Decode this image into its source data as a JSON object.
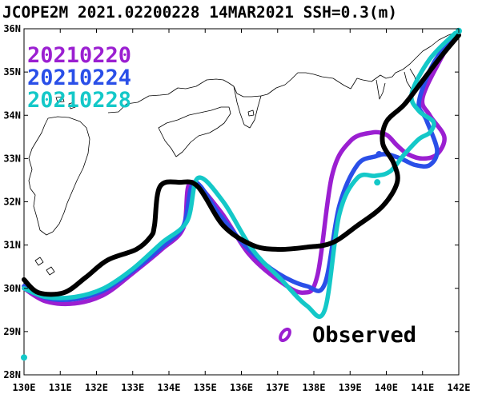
{
  "title": "JCOPE2M 2021.02200228 14MAR2021 SSH=0.3(m)",
  "axes": {
    "x_ticks": [
      "130E",
      "131E",
      "132E",
      "133E",
      "134E",
      "135E",
      "136E",
      "137E",
      "138E",
      "139E",
      "140E",
      "141E",
      "142E"
    ],
    "y_ticks": [
      "36N",
      "35N",
      "34N",
      "33N",
      "32N",
      "31N",
      "30N",
      "29N",
      "28N"
    ]
  },
  "legend": {
    "entries": [
      {
        "label": "20210220",
        "color": "#9b1fd1"
      },
      {
        "label": "20210224",
        "color": "#2a4fe8"
      },
      {
        "label": "20210228",
        "color": "#14c8c8"
      }
    ],
    "observed_label": "Observed",
    "observed_color": "#000000",
    "observed_marker_color": "#9b1fd1"
  },
  "chart_data": {
    "type": "map",
    "xlim": [
      130,
      142
    ],
    "ylim": [
      28,
      36
    ],
    "title": "JCOPE2M 2021.02200228 14MAR2021 SSH=0.3(m)",
    "series": [
      {
        "name": "20210220",
        "color": "#9b1fd1",
        "lon": [
          130.0,
          130.6,
          131.4,
          132.2,
          133.0,
          133.8,
          134.4,
          134.6,
          135.4,
          136.2,
          137.0,
          137.7,
          138.1,
          138.5,
          139.0,
          139.6,
          140.0,
          140.3,
          140.6,
          141.0,
          141.4,
          141.6,
          141.2,
          141.0,
          141.5,
          141.9
        ],
        "lat": [
          30.0,
          29.7,
          29.65,
          29.85,
          30.35,
          30.9,
          31.4,
          32.45,
          31.8,
          30.8,
          30.2,
          29.9,
          30.3,
          32.6,
          33.4,
          33.6,
          33.55,
          33.3,
          33.1,
          33.0,
          33.1,
          33.5,
          34.0,
          34.4,
          35.3,
          35.85
        ]
      },
      {
        "name": "20210224",
        "color": "#2a4fe8",
        "lon": [
          130.0,
          130.6,
          131.4,
          132.2,
          133.0,
          133.8,
          134.4,
          134.7,
          135.4,
          136.2,
          137.0,
          137.8,
          138.3,
          138.7,
          139.2,
          139.7,
          140.0,
          140.4,
          140.8,
          141.2,
          141.4,
          141.1,
          140.9,
          141.3,
          141.9
        ],
        "lat": [
          30.05,
          29.78,
          29.75,
          29.95,
          30.4,
          30.95,
          31.45,
          32.45,
          31.7,
          30.9,
          30.35,
          30.05,
          30.1,
          31.9,
          32.85,
          33.05,
          33.1,
          33.0,
          32.85,
          32.85,
          33.2,
          33.9,
          34.3,
          35.2,
          35.85
        ]
      },
      {
        "name": "20210228",
        "color": "#14c8c8",
        "lon": [
          130.0,
          130.6,
          131.4,
          132.2,
          133.0,
          133.8,
          134.5,
          134.8,
          135.5,
          136.3,
          137.1,
          137.8,
          138.3,
          138.7,
          139.2,
          139.7,
          140.1,
          140.5,
          140.9,
          141.2,
          141.3,
          140.9,
          140.7,
          141.2,
          141.9
        ],
        "lat": [
          30.0,
          29.8,
          29.8,
          30.0,
          30.45,
          31.05,
          31.55,
          32.55,
          32.0,
          30.9,
          30.2,
          29.6,
          29.5,
          31.7,
          32.55,
          32.6,
          32.7,
          33.1,
          33.45,
          33.6,
          33.85,
          34.1,
          34.5,
          35.3,
          35.9
        ]
      },
      {
        "name": "Observed",
        "color": "#000000",
        "lon": [
          130.0,
          130.4,
          131.1,
          131.7,
          132.3,
          133.1,
          133.5,
          133.6,
          133.75,
          134.3,
          134.8,
          135.5,
          136.3,
          137.0,
          137.8,
          138.5,
          139.2,
          139.9,
          140.3,
          140.2,
          139.9,
          140.0,
          140.5,
          141.0,
          141.5,
          142.0
        ],
        "lat": [
          30.2,
          29.9,
          29.9,
          30.25,
          30.65,
          30.9,
          31.2,
          31.45,
          32.35,
          32.45,
          32.35,
          31.45,
          31.0,
          30.9,
          30.95,
          31.05,
          31.45,
          31.9,
          32.45,
          32.9,
          33.35,
          33.85,
          34.25,
          34.8,
          35.35,
          35.85
        ]
      }
    ],
    "markers": [
      {
        "lon": 139.8,
        "lat": 33.1,
        "color": "#2a4fe8"
      },
      {
        "lon": 139.75,
        "lat": 32.45,
        "color": "#14c8c8"
      },
      {
        "lon": 130.0,
        "lat": 28.4,
        "color": "#14c8c8"
      },
      {
        "lon": 142.0,
        "lat": 35.95,
        "color": "#14c8c8"
      }
    ]
  }
}
